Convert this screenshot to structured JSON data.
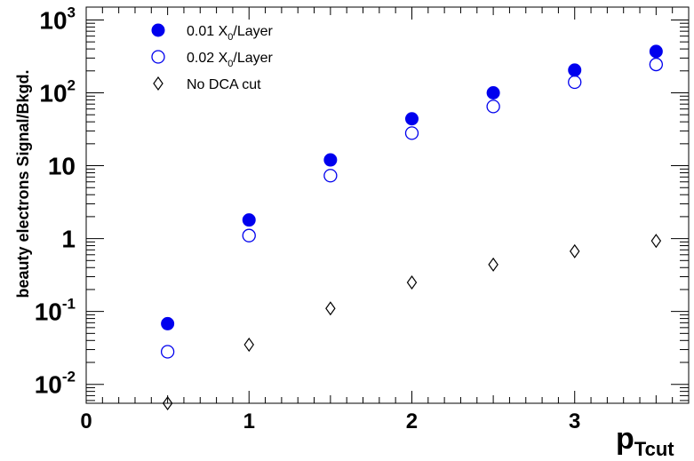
{
  "chart_data": {
    "type": "scatter",
    "x": [
      0.5,
      1.0,
      1.5,
      2.0,
      2.5,
      3.0,
      3.5
    ],
    "series": [
      {
        "name": "0.01 X0/Layer",
        "marker": "filled-circle",
        "color": "#0000ee",
        "values": [
          0.068,
          1.8,
          12,
          44,
          100,
          205,
          370
        ]
      },
      {
        "name": "0.02 X0/Layer",
        "marker": "open-circle",
        "color": "#0000ee",
        "values": [
          0.028,
          1.1,
          7.3,
          28,
          65,
          140,
          245
        ]
      },
      {
        "name": "No DCA cut",
        "marker": "open-diamond",
        "color": "#000000",
        "values": [
          0.0055,
          0.035,
          0.11,
          0.25,
          0.44,
          0.67,
          0.93
        ]
      }
    ],
    "xlim": [
      0,
      3.7
    ],
    "ylim": [
      0.0055,
      1500
    ],
    "yscale": "log",
    "xlabel": "p_Tcut",
    "ylabel": "beauty electrons Signal/Bkgd.",
    "x_ticks": [
      "0",
      "1",
      "2",
      "3"
    ],
    "y_ticks": [
      {
        "value": 0.01,
        "base": "10",
        "exp": "-2"
      },
      {
        "value": 0.1,
        "base": "10",
        "exp": "-1"
      },
      {
        "value": 1,
        "base": "1",
        "exp": ""
      },
      {
        "value": 10,
        "base": "10",
        "exp": ""
      },
      {
        "value": 100,
        "base": "10",
        "exp": "2"
      },
      {
        "value": 1000,
        "base": "10",
        "exp": "3"
      }
    ],
    "legend": [
      {
        "main": "0.01 X",
        "sub": "0",
        "rest": "/Layer",
        "marker": "filled-circle"
      },
      {
        "main": "0.02 X",
        "sub": "0",
        "rest": "/Layer",
        "marker": "open-circle"
      },
      {
        "main": "No DCA cut",
        "sub": "",
        "rest": "",
        "marker": "open-diamond"
      }
    ],
    "legend_position": "top-left",
    "grid": false
  }
}
